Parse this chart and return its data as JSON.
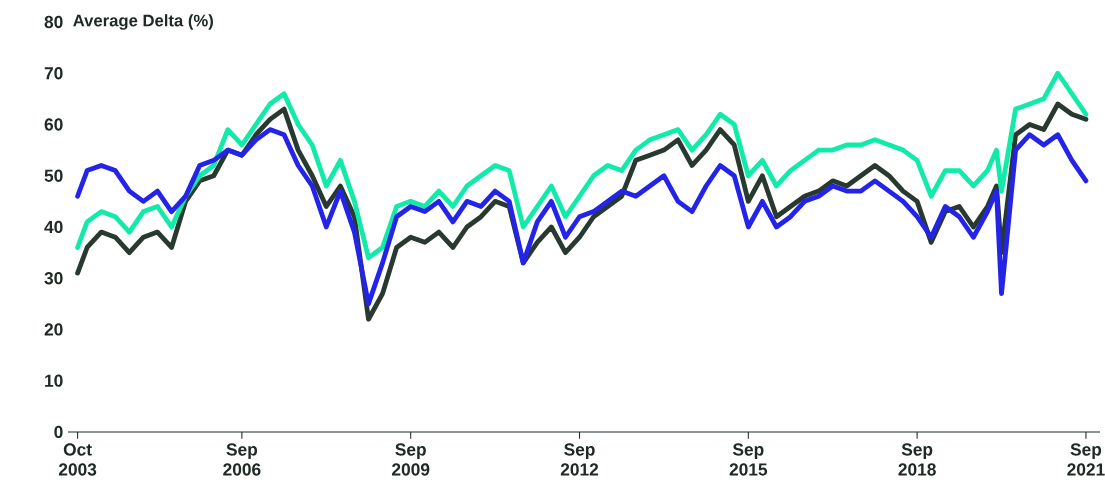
{
  "chart_data": {
    "type": "line",
    "ylabel": "Average Delta (%)",
    "x": [
      "2003-10",
      "2003-12",
      "2004-03",
      "2004-06",
      "2004-09",
      "2004-12",
      "2005-03",
      "2005-06",
      "2005-09",
      "2005-12",
      "2006-03",
      "2006-06",
      "2006-09",
      "2006-12",
      "2007-03",
      "2007-06",
      "2007-09",
      "2007-12",
      "2008-03",
      "2008-06",
      "2008-09",
      "2008-12",
      "2009-03",
      "2009-06",
      "2009-09",
      "2009-12",
      "2010-03",
      "2010-06",
      "2010-09",
      "2010-12",
      "2011-03",
      "2011-06",
      "2011-09",
      "2011-12",
      "2012-03",
      "2012-06",
      "2012-09",
      "2012-12",
      "2013-03",
      "2013-06",
      "2013-09",
      "2013-12",
      "2014-03",
      "2014-06",
      "2014-09",
      "2014-12",
      "2015-03",
      "2015-06",
      "2015-09",
      "2015-12",
      "2016-03",
      "2016-06",
      "2016-09",
      "2016-12",
      "2017-03",
      "2017-06",
      "2017-09",
      "2017-12",
      "2018-03",
      "2018-06",
      "2018-09",
      "2018-12",
      "2019-03",
      "2019-06",
      "2019-09",
      "2019-12",
      "2020-02",
      "2020-03",
      "2020-06",
      "2020-09",
      "2020-12",
      "2021-03",
      "2021-06",
      "2021-09"
    ],
    "series": [
      {
        "color": "#28392f",
        "values": [
          31,
          36,
          39,
          38,
          35,
          38,
          39,
          36,
          45,
          49,
          50,
          55,
          54,
          58,
          61,
          63,
          55,
          50,
          44,
          48,
          42,
          22,
          27,
          36,
          38,
          37,
          39,
          36,
          40,
          42,
          45,
          44,
          33,
          37,
          40,
          35,
          38,
          42,
          44,
          46,
          53,
          54,
          55,
          57,
          52,
          55,
          59,
          56,
          45,
          50,
          42,
          44,
          46,
          47,
          49,
          48,
          50,
          52,
          50,
          47,
          45,
          37,
          43,
          44,
          40,
          44,
          48,
          35,
          58,
          60,
          59,
          64,
          62,
          61
        ]
      },
      {
        "color": "#12eaaa",
        "values": [
          36,
          41,
          43,
          42,
          39,
          43,
          44,
          40,
          46,
          50,
          52,
          59,
          56,
          60,
          64,
          66,
          60,
          56,
          48,
          53,
          45,
          34,
          36,
          44,
          45,
          44,
          47,
          44,
          48,
          50,
          52,
          51,
          40,
          44,
          48,
          42,
          46,
          50,
          52,
          51,
          55,
          57,
          58,
          59,
          55,
          58,
          62,
          60,
          50,
          53,
          48,
          51,
          53,
          55,
          55,
          56,
          56,
          57,
          56,
          55,
          53,
          46,
          51,
          51,
          48,
          51,
          55,
          47,
          63,
          64,
          65,
          70,
          66,
          62
        ]
      },
      {
        "color": "#2424e8",
        "values": [
          46,
          51,
          52,
          51,
          47,
          45,
          47,
          43,
          46,
          52,
          53,
          55,
          54,
          57,
          59,
          58,
          52,
          48,
          40,
          47,
          39,
          25,
          33,
          42,
          44,
          43,
          45,
          41,
          45,
          44,
          47,
          45,
          33,
          41,
          45,
          38,
          42,
          43,
          45,
          47,
          46,
          48,
          50,
          45,
          43,
          48,
          52,
          50,
          40,
          45,
          40,
          42,
          45,
          46,
          48,
          47,
          47,
          49,
          47,
          45,
          42,
          38,
          44,
          42,
          38,
          43,
          47,
          27,
          55,
          58,
          56,
          58,
          53,
          49
        ]
      }
    ],
    "xlim": [
      "2003-08",
      "2021-12"
    ],
    "xticks": [
      {
        "value": "2003-10",
        "label": "Oct 2003"
      },
      {
        "value": "2006-09",
        "label": "Sep 2006"
      },
      {
        "value": "2009-09",
        "label": "Sep 2009"
      },
      {
        "value": "2012-09",
        "label": "Sep 2012"
      },
      {
        "value": "2015-09",
        "label": "Sep 2015"
      },
      {
        "value": "2018-09",
        "label": "Sep 2018"
      },
      {
        "value": "2021-09",
        "label": "Sep 2021"
      }
    ],
    "ylim": [
      0,
      80
    ],
    "yticks": [
      0,
      10,
      20,
      30,
      40,
      50,
      60,
      70,
      80
    ],
    "grid": false,
    "marker": "none",
    "line_style": "solid"
  }
}
